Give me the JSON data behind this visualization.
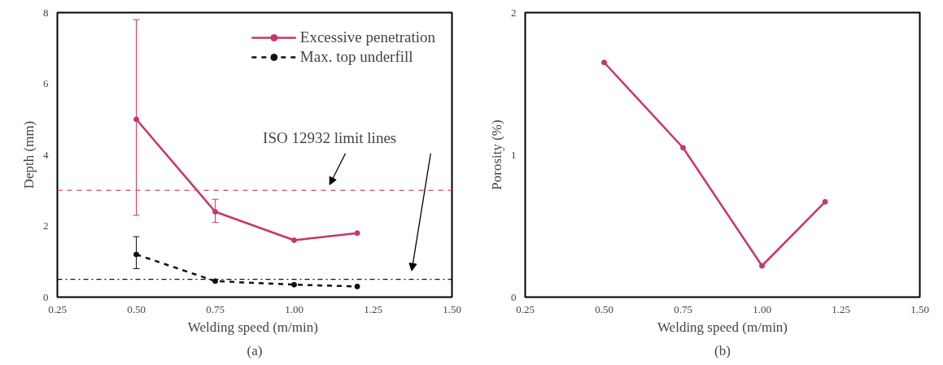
{
  "chart_data": [
    {
      "type": "line",
      "xlabel": "Welding speed  (m/min)",
      "ylabel": "Depth (mm)",
      "xlim": [
        0.25,
        1.5
      ],
      "ylim": [
        0,
        8
      ],
      "xticks": [
        {
          "value": 0.25,
          "label": "0.25"
        },
        {
          "value": 0.5,
          "label": "0.50"
        },
        {
          "value": 0.75,
          "label": "0.75"
        },
        {
          "value": 1.0,
          "label": "1.00"
        },
        {
          "value": 1.25,
          "label": "1.25"
        },
        {
          "value": 1.5,
          "label": "1.50"
        }
      ],
      "yticks": [
        0,
        2,
        4,
        6,
        8
      ],
      "grid": false,
      "legend": "top right",
      "marker": "circle",
      "series": [
        {
          "name": "Excessive penetration",
          "color": "#c8366b",
          "x": [
            0.5,
            0.75,
            1.0,
            1.2
          ],
          "values": [
            5.0,
            2.4,
            1.6,
            1.8
          ],
          "errors": [
            [
              2.3,
              7.8
            ],
            [
              2.1,
              2.75
            ],
            null,
            null
          ],
          "line_style": "solid"
        },
        {
          "name": "Max. top underfill",
          "color": "#111111",
          "x": [
            0.5,
            0.75,
            1.0,
            1.2
          ],
          "values": [
            1.2,
            0.45,
            0.35,
            0.3
          ],
          "errors": [
            [
              0.8,
              1.7
            ],
            null,
            null,
            null
          ],
          "line_style": "dashed"
        }
      ],
      "ref_lines": [
        {
          "axis": "y",
          "value": 3,
          "label": null,
          "color": "#d06080",
          "line_style": "dashed"
        },
        {
          "axis": "y",
          "value": 0.5,
          "label": null,
          "color": "#111111",
          "line_style": "dashdot"
        }
      ],
      "annotations": [
        "ISO 12932 limit lines",
        "(a)"
      ]
    },
    {
      "type": "line",
      "xlabel": "Welding speed (m/min)",
      "ylabel": "Porosity (%)",
      "xlim": [
        0.25,
        1.5
      ],
      "ylim": [
        0,
        2
      ],
      "xticks": [
        {
          "value": 0.25,
          "label": "0.25"
        },
        {
          "value": 0.5,
          "label": "0.50"
        },
        {
          "value": 0.75,
          "label": "0.75"
        },
        {
          "value": 1.0,
          "label": "1.00"
        },
        {
          "value": 1.25,
          "label": "1.25"
        },
        {
          "value": 1.5,
          "label": "1.50"
        }
      ],
      "yticks": [
        0,
        1,
        2
      ],
      "grid": false,
      "marker": "circle",
      "series": [
        {
          "color": "#c8366b",
          "x": [
            0.5,
            0.75,
            1.0,
            1.2
          ],
          "values": [
            1.65,
            1.05,
            0.22,
            0.67
          ],
          "line_style": "solid"
        }
      ],
      "annotations": [
        "(b)"
      ]
    }
  ]
}
